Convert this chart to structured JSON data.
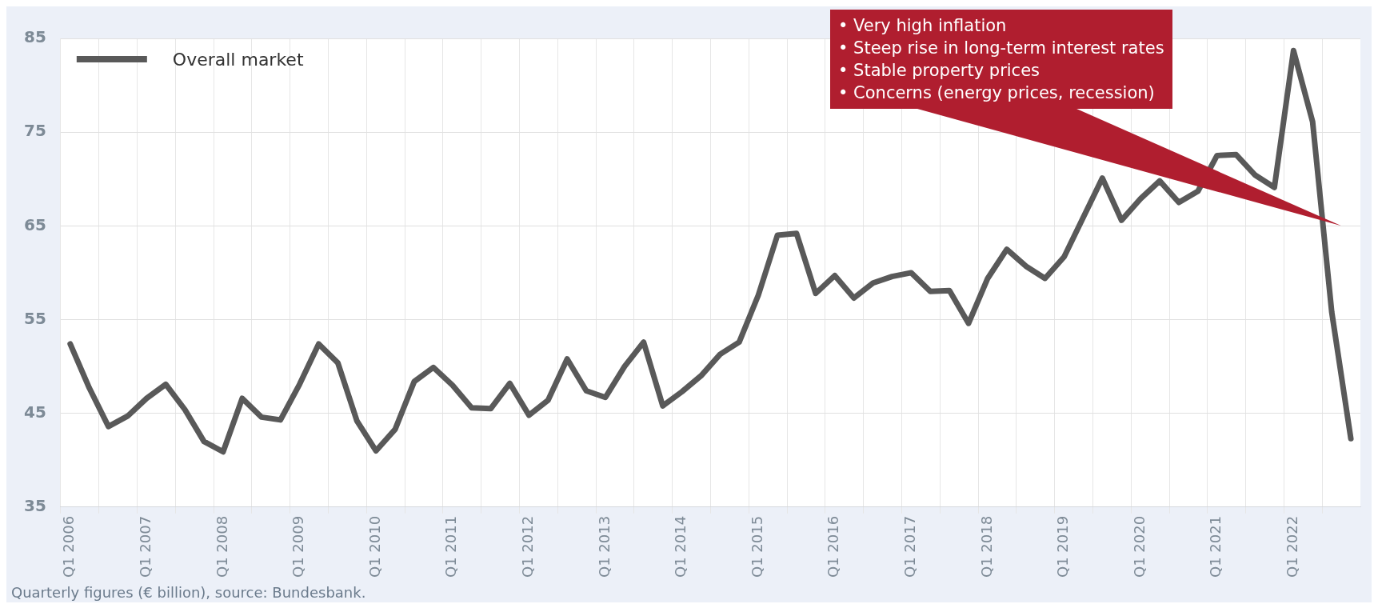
{
  "chart_data": {
    "type": "line",
    "categories": [
      "Q1 2006",
      null,
      null,
      null,
      "Q1 2007",
      null,
      null,
      null,
      "Q1 2008",
      null,
      null,
      null,
      "Q1 2009",
      null,
      null,
      null,
      "Q1 2010",
      null,
      null,
      null,
      "Q1 2011",
      null,
      null,
      null,
      "Q1 2012",
      null,
      null,
      null,
      "Q1 2013",
      null,
      null,
      null,
      "Q1 2014",
      null,
      null,
      null,
      "Q1 2015",
      null,
      null,
      null,
      "Q1 2016",
      null,
      null,
      null,
      "Q1 2017",
      null,
      null,
      null,
      "Q1 2018",
      null,
      null,
      null,
      "Q1 2019",
      null,
      null,
      null,
      "Q1 2020",
      null,
      null,
      null,
      "Q1 2021",
      null,
      null,
      null,
      "Q1 2022",
      null,
      null,
      null
    ],
    "series": [
      {
        "name": "Overall market",
        "color": "#595959",
        "values": [
          52.4,
          47.7,
          43.6,
          44.7,
          46.6,
          48.1,
          45.4,
          42.0,
          40.9,
          46.6,
          44.6,
          44.3,
          48.1,
          52.4,
          50.4,
          44.2,
          41.0,
          43.3,
          48.4,
          49.9,
          48.0,
          45.6,
          45.5,
          48.2,
          44.8,
          46.4,
          50.8,
          47.4,
          46.7,
          50.0,
          52.6,
          45.8,
          47.3,
          49.0,
          51.3,
          52.6,
          57.6,
          64.0,
          64.2,
          57.8,
          59.7,
          57.3,
          58.9,
          59.6,
          60.0,
          58.0,
          58.1,
          54.6,
          59.4,
          62.5,
          60.7,
          59.4,
          61.7,
          65.9,
          70.1,
          65.6,
          67.9,
          69.8,
          67.5,
          68.7,
          72.5,
          72.6,
          70.4,
          69.1,
          83.7,
          76.1,
          55.8,
          42.3
        ]
      }
    ],
    "ylim": [
      35,
      85
    ],
    "yticks": [
      35,
      45,
      55,
      65,
      75,
      85
    ],
    "grid": true,
    "legend": "top left",
    "marker": "none",
    "line_style": "solid",
    "annotations": [
      "• Very high inflation\n• Steep rise in long-term interest rates\n• Stable property prices\n• Concerns (energy prices, recession)",
      "Quarterly figures (€ billion), source: Bundesbank."
    ]
  }
}
